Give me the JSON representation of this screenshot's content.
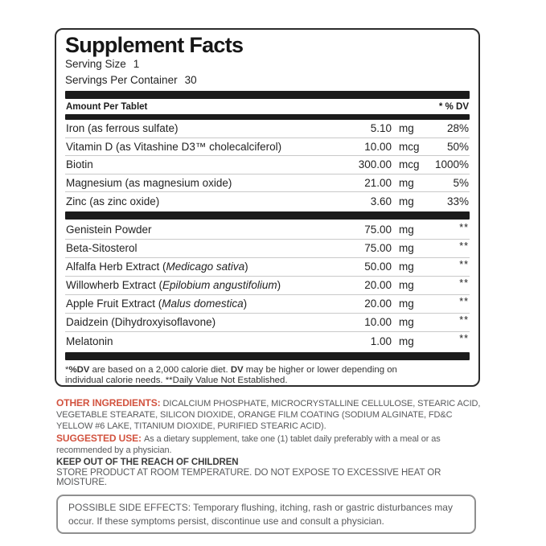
{
  "colors": {
    "accent": "#d2523e",
    "bar": "#1b1b1b",
    "body_gray": "#58595b"
  },
  "label": {
    "title": "Supplement Facts",
    "serving_size_label": "Serving Size",
    "serving_size_value": "1",
    "servings_label": "Servings Per Container",
    "servings_value": "30",
    "col_header_left": "Amount Per Tablet",
    "col_header_right": "* % DV",
    "rows_dv": [
      {
        "pre": "Iron (as ferrous sulfate)",
        "italic": "",
        "post": "",
        "amount": "5.10",
        "unit": "mg",
        "dv": "28%"
      },
      {
        "pre": "Vitamin D (as Vitashine D3™ cholecalciferol)",
        "italic": "",
        "post": "",
        "amount": "10.00",
        "unit": "mcg",
        "dv": "50%"
      },
      {
        "pre": "Biotin",
        "italic": "",
        "post": "",
        "amount": "300.00",
        "unit": "mcg",
        "dv": "1000%"
      },
      {
        "pre": "Magnesium (as magnesium oxide)",
        "italic": "",
        "post": "",
        "amount": "21.00",
        "unit": "mg",
        "dv": "5%"
      },
      {
        "pre": "Zinc (as zinc oxide)",
        "italic": "",
        "post": "",
        "amount": "3.60",
        "unit": "mg",
        "dv": "33%"
      }
    ],
    "rows_nodv": [
      {
        "pre": "Genistein Powder",
        "italic": "",
        "post": "",
        "amount": "75.00",
        "unit": "mg",
        "dv": "**"
      },
      {
        "pre": "Beta-Sitosterol",
        "italic": "",
        "post": "",
        "amount": "75.00",
        "unit": "mg",
        "dv": "**"
      },
      {
        "pre": "Alfalfa Herb Extract (",
        "italic": "Medicago sativa",
        "post": ")",
        "amount": "50.00",
        "unit": "mg",
        "dv": "**"
      },
      {
        "pre": "Willowherb Extract (",
        "italic": "Epilobium angustifolium",
        "post": ")",
        "amount": "20.00",
        "unit": "mg",
        "dv": "**"
      },
      {
        "pre": "Apple Fruit Extract (",
        "italic": "Malus domestica",
        "post": ")",
        "amount": "20.00",
        "unit": "mg",
        "dv": "**"
      },
      {
        "pre": "Daidzein (Dihydroxyisoflavone)",
        "italic": "",
        "post": "",
        "amount": "10.00",
        "unit": "mg",
        "dv": "**"
      },
      {
        "pre": "Melatonin",
        "italic": "",
        "post": "",
        "amount": "1.00",
        "unit": "mg",
        "dv": "**"
      }
    ],
    "footnote": {
      "seg1": "*",
      "seg2": "%DV",
      "seg3": " are based on a 2,000 calorie diet. ",
      "seg4": "DV",
      "seg5": " may be higher or lower depending on individual calorie needs. **Daily Value Not Established."
    }
  },
  "sections": {
    "other_ingredients_label": "OTHER INGREDIENTS:",
    "other_ingredients_text": "DICALCIUM PHOSPHATE, MICROCRYSTALLINE CELLULOSE, STEARIC ACID, VEGETABLE STEARATE, SILICON DIOXIDE, ORANGE FILM COATING (SODIUM ALGINATE, FD&C YELLOW #6 LAKE, TITANIUM DIOXIDE, PURIFIED STEARIC ACID).",
    "suggested_use_label": "SUGGESTED USE:",
    "suggested_use_text": "As a dietary supplement, take one (1) tablet daily preferably with a meal or as recommended by a physician.",
    "keep_out": "KEEP OUT OF THE REACH OF CHILDREN",
    "storage": "STORE PRODUCT AT ROOM TEMPERATURE. DO NOT EXPOSE TO EXCESSIVE HEAT OR MOISTURE.",
    "side_effects": "POSSIBLE SIDE EFFECTS: Temporary flushing, itching, rash or gastric disturbances may occur. If these symptoms persist, discontinue use and consult a physician."
  }
}
